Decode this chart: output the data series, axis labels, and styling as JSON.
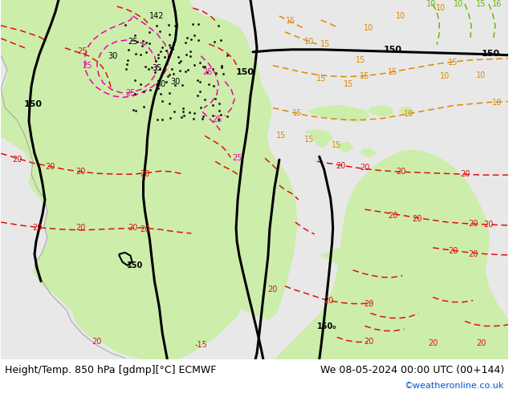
{
  "title_left": "Height/Temp. 850 hPa [gdmp][°C] ECMWF",
  "title_right": "We 08-05-2024 00:00 UTC (00+144)",
  "copyright": "©weatheronline.co.uk",
  "fig_width": 6.34,
  "fig_height": 4.9,
  "dpi": 100,
  "title_fontsize": 9.0,
  "copyright_color": "#0055cc",
  "copyright_fontsize": 8,
  "land_color": "#cceeaa",
  "sea_color": "#e8e8e8",
  "black_lw": 2.2,
  "red_lw": 1.1,
  "magenta_lw": 1.1,
  "orange_lw": 1.1,
  "green_lw": 1.1
}
